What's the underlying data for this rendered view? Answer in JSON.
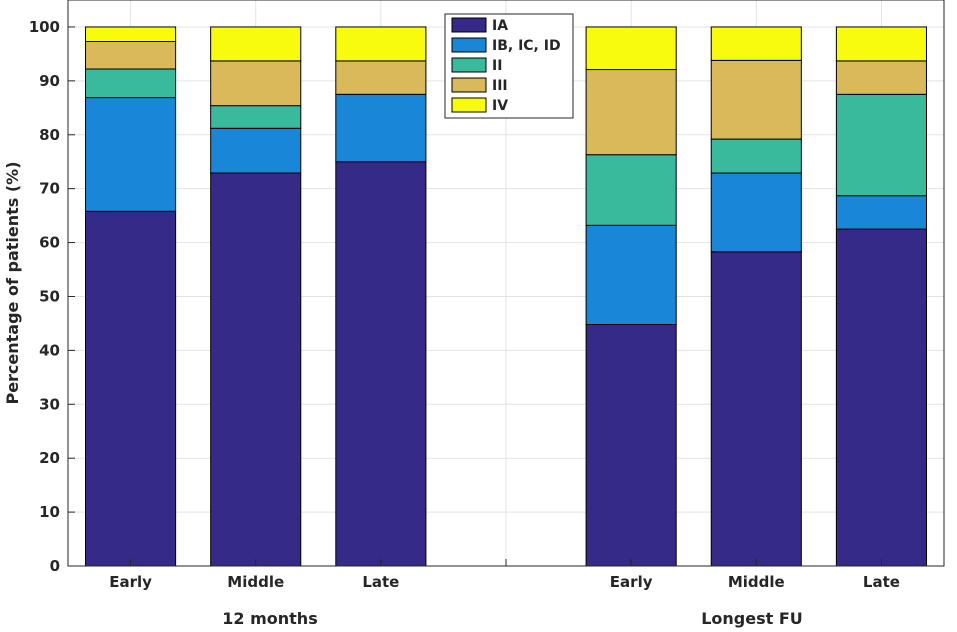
{
  "chart_data": {
    "type": "bar",
    "stacked": true,
    "ylabel": "Percentage of patients (%)",
    "ylim": [
      0,
      105
    ],
    "yticks": [
      0,
      10,
      20,
      30,
      40,
      50,
      60,
      70,
      80,
      90,
      100
    ],
    "grid": true,
    "legend_position": "top-center",
    "categories": [
      "Early",
      "Middle",
      "Late",
      "",
      "Early",
      "Middle",
      "Late"
    ],
    "groups": [
      {
        "label": "12 months",
        "categories": [
          "Early",
          "Middle",
          "Late"
        ]
      },
      {
        "label": "Longest FU",
        "categories": [
          "Early",
          "Middle",
          "Late"
        ]
      }
    ],
    "series": [
      {
        "name": "IA",
        "color": "#352a87",
        "values": [
          65.8,
          72.9,
          75.0,
          null,
          44.8,
          58.3,
          62.5
        ]
      },
      {
        "name": "IB, IC, ID",
        "color": "#1a86d8",
        "values": [
          21.1,
          8.3,
          12.5,
          null,
          18.4,
          14.6,
          6.2
        ]
      },
      {
        "name": "II",
        "color": "#3aba9c",
        "values": [
          5.3,
          4.2,
          0.0,
          null,
          13.1,
          6.3,
          18.8
        ]
      },
      {
        "name": "III",
        "color": "#d9b95a",
        "values": [
          5.1,
          8.3,
          6.2,
          null,
          15.8,
          14.6,
          6.2
        ]
      },
      {
        "name": "IV",
        "color": "#f9fb0e",
        "values": [
          2.7,
          6.3,
          6.3,
          null,
          7.9,
          6.2,
          6.3
        ]
      }
    ]
  }
}
